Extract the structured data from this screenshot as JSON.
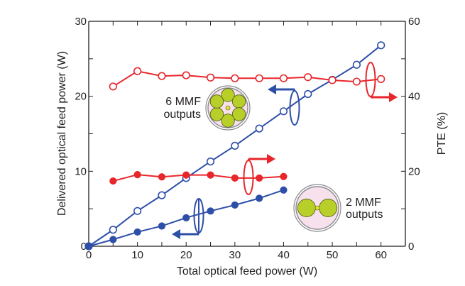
{
  "chart_data": {
    "type": "line",
    "title": "",
    "xlabel": "Total optical feed power (W)",
    "ylabel": "Delivered optical feed power (W)",
    "y2label": "PTE (%)",
    "xlim": [
      0,
      65
    ],
    "ylim": [
      0,
      30
    ],
    "y2lim": [
      0,
      60
    ],
    "grid": false,
    "x_ticks": [
      0,
      10,
      20,
      30,
      40,
      50,
      60
    ],
    "y_ticks": [
      0,
      10,
      20,
      30
    ],
    "y2_ticks": [
      0,
      20,
      40,
      60
    ],
    "series": [
      {
        "name": "6 MMF delivered power",
        "axis": "left",
        "color": "#2e4fa8",
        "marker": "open-circle",
        "x": [
          0,
          5,
          10,
          15,
          20,
          25,
          30,
          35,
          40,
          45,
          50,
          55,
          60
        ],
        "values": [
          0,
          2.2,
          4.7,
          6.8,
          9.1,
          11.3,
          13.4,
          15.7,
          18.0,
          20.3,
          22.2,
          24.2,
          26.8
        ]
      },
      {
        "name": "2 MMF delivered power",
        "axis": "left",
        "color": "#2e4fa8",
        "marker": "filled-circle",
        "x": [
          0,
          5,
          10,
          15,
          20,
          25,
          30,
          35,
          40
        ],
        "values": [
          0,
          0.9,
          1.9,
          2.7,
          3.8,
          4.7,
          5.5,
          6.4,
          7.5
        ]
      },
      {
        "name": "6 MMF PTE",
        "axis": "right",
        "color": "#e8262b",
        "marker": "open-circle",
        "x": [
          5,
          10,
          15,
          20,
          25,
          30,
          35,
          40,
          45,
          50,
          55,
          60
        ],
        "values": [
          42.6,
          46.7,
          45.4,
          45.6,
          45.0,
          44.8,
          44.8,
          44.8,
          45.1,
          44.3,
          43.9,
          44.6
        ]
      },
      {
        "name": "2 MMF PTE",
        "axis": "right",
        "color": "#e8262b",
        "marker": "filled-circle",
        "x": [
          5,
          10,
          15,
          20,
          25,
          30,
          35,
          40
        ],
        "values": [
          17.4,
          19.1,
          18.5,
          19.0,
          19.0,
          18.2,
          18.2,
          18.6
        ]
      }
    ],
    "annotations": [
      {
        "text_line1": "6 MMF",
        "text_line2": "outputs",
        "fiber_cores": 6
      },
      {
        "text_line1": "2 MMF",
        "text_line2": "outputs",
        "fiber_cores": 2
      }
    ],
    "axis_indicators": [
      {
        "series": "6 MMF delivered power",
        "points_to": "left"
      },
      {
        "series": "6 MMF PTE",
        "points_to": "right"
      },
      {
        "series": "2 MMF delivered power",
        "points_to": "left"
      },
      {
        "series": "2 MMF PTE",
        "points_to": "right"
      }
    ],
    "colors": {
      "axis": "#231f20",
      "blue": "#2e4fa8",
      "red": "#e8262b",
      "fiber_cladding": "#f7e1ec",
      "fiber_core": "#b8cf2a",
      "fiber_core_edge": "#4a5a14",
      "fiber_center": "#e8e33a",
      "fiber_ring": "#8a8a90"
    }
  }
}
